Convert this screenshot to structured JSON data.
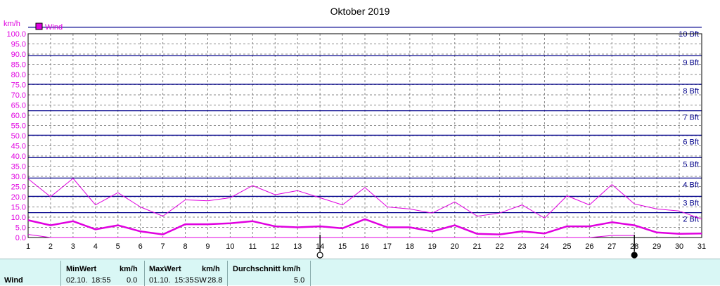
{
  "chart_data": {
    "type": "line",
    "title": "Oktober 2019",
    "ylabel": "km/h",
    "ylim": [
      0,
      100
    ],
    "yticks": [
      "0.0",
      "5.0",
      "10.0",
      "15.0",
      "20.0",
      "25.0",
      "30.0",
      "35.0",
      "40.0",
      "45.0",
      "50.0",
      "55.0",
      "60.0",
      "65.0",
      "70.0",
      "75.0",
      "80.0",
      "85.0",
      "90.0",
      "95.0",
      "100.0"
    ],
    "xlim": [
      1,
      31
    ],
    "xticks": [
      "1",
      "2",
      "3",
      "4",
      "5",
      "6",
      "7",
      "8",
      "9",
      "10",
      "11",
      "12",
      "13",
      "14",
      "15",
      "16",
      "17",
      "18",
      "19",
      "20",
      "21",
      "22",
      "23",
      "24",
      "25",
      "26",
      "27",
      "28",
      "29",
      "30",
      "31"
    ],
    "legend": "Wind",
    "legend_position": "top-left",
    "grid": true,
    "beaufort": [
      {
        "label": "2 Bft",
        "value": 11.5
      },
      {
        "label": "3 Bft",
        "value": 19.5
      },
      {
        "label": "4 Bft",
        "value": 28.5
      },
      {
        "label": "5 Bft",
        "value": 38.5
      },
      {
        "label": "6 Bft",
        "value": 49.5
      },
      {
        "label": "7 Bft",
        "value": 61.5
      },
      {
        "label": "8 Bft",
        "value": 74.5
      },
      {
        "label": "9 Bft",
        "value": 88.5
      },
      {
        "label": "10 Bft",
        "value": 102.5
      }
    ],
    "series": [
      {
        "name": "Wind",
        "kind": "max",
        "x": [
          1,
          2,
          3,
          4,
          5,
          6,
          7,
          8,
          9,
          10,
          11,
          12,
          13,
          14,
          15,
          16,
          17,
          18,
          19,
          20,
          21,
          22,
          23,
          24,
          25,
          26,
          27,
          28,
          29,
          30,
          31
        ],
        "values": [
          28.8,
          20,
          29,
          16,
          22,
          15,
          10.5,
          18.5,
          18,
          19.5,
          25.5,
          21,
          23,
          19.5,
          16,
          24.5,
          15,
          14,
          12,
          17.5,
          10.5,
          12,
          16,
          9.5,
          20.5,
          16,
          26,
          16.5,
          14,
          13,
          9
        ]
      },
      {
        "name": "Wind",
        "kind": "average",
        "x": [
          1,
          2,
          3,
          4,
          5,
          6,
          7,
          8,
          9,
          10,
          11,
          12,
          13,
          14,
          15,
          16,
          17,
          18,
          19,
          20,
          21,
          22,
          23,
          24,
          25,
          26,
          27,
          28,
          29,
          30,
          31
        ],
        "values": [
          8.5,
          6,
          8,
          4,
          6,
          3,
          1.5,
          6.5,
          6.5,
          7,
          8,
          5.5,
          5,
          5.5,
          4.5,
          9,
          5,
          5,
          3,
          6,
          1.8,
          1.5,
          3,
          2,
          5.5,
          5.5,
          7.5,
          6,
          2.5,
          1.8,
          2
        ]
      },
      {
        "name": "Wind",
        "kind": "min",
        "x": [
          1,
          2,
          26,
          27,
          28
        ],
        "values": [
          1.5,
          0,
          0,
          1,
          1
        ]
      }
    ],
    "moon_phases": [
      {
        "day": 14,
        "phase": "full"
      },
      {
        "day": 28,
        "phase": "new"
      }
    ],
    "colors": {
      "wind": "#e000e0",
      "beaufort": "#00008b",
      "axis_text": "#e000e0"
    }
  },
  "stats": {
    "row_label": "Wind",
    "min": {
      "header": "MinWert",
      "unit": "km/h",
      "date": "02.10.",
      "time": "18:55",
      "value": "0.0"
    },
    "max": {
      "header": "MaxWert",
      "unit": "km/h",
      "date": "01.10.",
      "time": "15:35",
      "dir": "SW",
      "value": "28.8"
    },
    "avg": {
      "header": "Durchschnitt km/h",
      "value": "5.0"
    }
  }
}
